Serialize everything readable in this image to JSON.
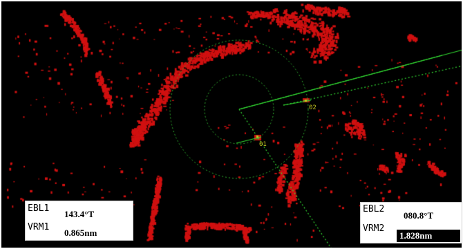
{
  "colors": {
    "echo": "#d01010",
    "range_ring": "#33bb33",
    "ebl_line": "#33dd33",
    "target_label": "#c8c820",
    "panel_bg": "#ffffff",
    "display_bg": "#000000"
  },
  "readouts": {
    "ebl1": {
      "ebl_label": "EBL1",
      "ebl_value": "143.4°T",
      "vrm_label": "VRM1",
      "vrm_value": "0.865nm"
    },
    "ebl2": {
      "ebl_label": "EBL2",
      "ebl_value": "080.8°T",
      "vrm_label": "VRM2",
      "vrm_value": "1.828nm"
    }
  },
  "targets": [
    {
      "id": "01",
      "label": "01"
    },
    {
      "id": "02",
      "label": "02"
    }
  ]
}
